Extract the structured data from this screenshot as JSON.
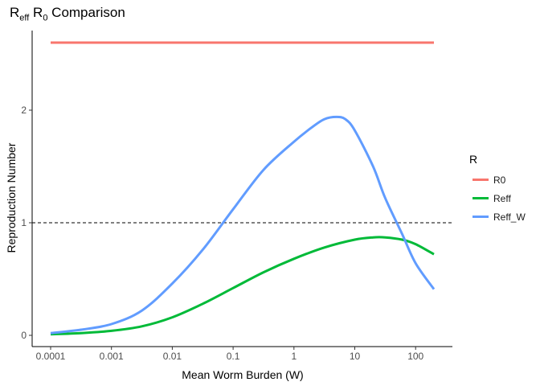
{
  "chart_data": {
    "type": "line",
    "title_main": "R",
    "title_sub1": "eff",
    "title_mid": " R",
    "title_sub2": "0",
    "title_tail": " Comparison",
    "xlabel": "Mean Worm Burden (W)",
    "ylabel": "Reproduction Number",
    "x_scale": "log10",
    "xlim": [
      0.0001,
      200
    ],
    "ylim": [
      0,
      2.6
    ],
    "x_ticks": [
      {
        "value": 0.0001,
        "label": "0.0001"
      },
      {
        "value": 0.001,
        "label": "0.001"
      },
      {
        "value": 0.01,
        "label": "0.01"
      },
      {
        "value": 0.1,
        "label": "0.1"
      },
      {
        "value": 1,
        "label": "1"
      },
      {
        "value": 10,
        "label": "10"
      },
      {
        "value": 100,
        "label": "100"
      }
    ],
    "y_ticks": [
      {
        "value": 0,
        "label": "0"
      },
      {
        "value": 1,
        "label": "1"
      },
      {
        "value": 2,
        "label": "2"
      }
    ],
    "reference_line": {
      "y": 1,
      "style": "dashed"
    },
    "grid": false,
    "legend": {
      "title": "R",
      "position": "right"
    },
    "series": [
      {
        "name": "R0",
        "color": "#F8766D",
        "points": [
          [
            0.0001,
            2.6
          ],
          [
            200,
            2.6
          ]
        ]
      },
      {
        "name": "Reff",
        "color": "#00BA38",
        "points": [
          [
            0.0001,
            0.01
          ],
          [
            0.000316,
            0.02
          ],
          [
            0.001,
            0.04
          ],
          [
            0.00316,
            0.08
          ],
          [
            0.01,
            0.16
          ],
          [
            0.0316,
            0.28
          ],
          [
            0.1,
            0.42
          ],
          [
            0.316,
            0.56
          ],
          [
            1,
            0.68
          ],
          [
            3.16,
            0.78
          ],
          [
            10,
            0.85
          ],
          [
            20,
            0.87
          ],
          [
            31.6,
            0.87
          ],
          [
            60,
            0.85
          ],
          [
            100,
            0.81
          ],
          [
            200,
            0.72
          ]
        ]
      },
      {
        "name": "Reff_W",
        "color": "#619CFF",
        "points": [
          [
            0.0001,
            0.02
          ],
          [
            0.000316,
            0.05
          ],
          [
            0.001,
            0.1
          ],
          [
            0.00316,
            0.22
          ],
          [
            0.01,
            0.46
          ],
          [
            0.0316,
            0.76
          ],
          [
            0.1,
            1.12
          ],
          [
            0.316,
            1.47
          ],
          [
            1,
            1.72
          ],
          [
            2,
            1.85
          ],
          [
            3.16,
            1.92
          ],
          [
            5,
            1.94
          ],
          [
            7,
            1.92
          ],
          [
            10,
            1.82
          ],
          [
            20,
            1.5
          ],
          [
            31.6,
            1.22
          ],
          [
            60,
            0.9
          ],
          [
            100,
            0.64
          ],
          [
            200,
            0.41
          ]
        ]
      }
    ]
  }
}
